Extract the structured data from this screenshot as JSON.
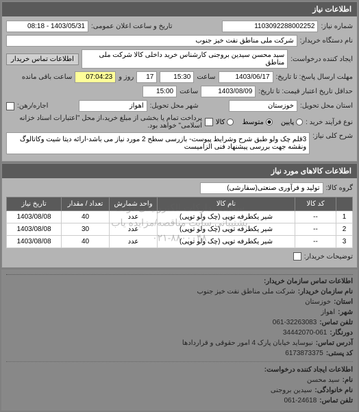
{
  "header": {
    "title": "اطلاعات نیاز"
  },
  "form": {
    "reqno_label": "شماره نیاز:",
    "reqno": "1103092288002252",
    "datetime_label": "تاریخ و ساعت اعلان عمومی:",
    "datetime": "1403/05/31 - 08:18",
    "org_label": "نام دستگاه خریدار:",
    "org": "شرکت ملی مناطق نفت خیز جنوب",
    "requester_label": "ایجاد کننده درخواست:",
    "requester": "سید محسن  سیدین بروجنی  کارشناس خرید داخلی کالا   شرکت ملی مناطق",
    "contact_btn": "اطلاعات تماس خریدار",
    "deadline_label": "مهلت ارسال پاسخ: تا تاریخ:",
    "deadline_date": "1403/06/17",
    "deadline_time_label": "ساعت",
    "deadline_time": "15:30",
    "days_remaining": "17",
    "days_label": "روز و",
    "time_remaining": "07:04:23",
    "time_remaining_label": "ساعت باقی مانده",
    "validity_label": "حداقل تاریخ اعتبار قیمت: تا تاریخ:",
    "validity_date": "1403/08/09",
    "validity_time_label": "ساعت",
    "validity_time": "15:00",
    "province_label": "استان محل تحویل:",
    "province": "خوزستان",
    "city_label": "شهر محل تحویل:",
    "city": "اهواز",
    "rental_label": "اجاره/رهن:",
    "purchase_type_label": "نوع فرآیند خرید :",
    "purchase_opt_low": "پایین",
    "purchase_opt_med": "متوسط",
    "purchase_opt_high": "کالا",
    "prepay_label": "پرداخت تمام یا بخشی از مبلغ خرید،از محل \"اعتبارات اسناد خزانه اسلامی\" خواهد بود.",
    "desc_label": "شرح کلی نیاز:",
    "desc": "3قلم چک ولو طبق شرح وشرایط پیوست- بازرسی سطح 2 مورد نیاز می باشد-ارائه دیتا شیت وکاتالوگ ونقشه جهت بررسی پیشنهاد فنی الزامیست"
  },
  "items_section": {
    "title": "اطلاعات کالاهای مورد نیاز",
    "group_label": "گروه کالا:",
    "group": "تولید و فرآوری صنعتی(سفارشی)"
  },
  "table": {
    "columns": [
      "",
      "کد کالا",
      "نام کالا",
      "واحد شمارش",
      "تعداد / مقدار",
      "تاریخ نیاز"
    ],
    "col_widths": [
      "24px",
      "60px",
      "auto",
      "70px",
      "70px",
      "80px"
    ],
    "rows": [
      [
        "1",
        "--",
        "شیر یکطرفه توپی (چک ولو توپی)",
        "عدد",
        "40",
        "1403/08/08"
      ],
      [
        "2",
        "--",
        "شیر یکطرفه توپی (چک ولو توپی)",
        "عدد",
        "30",
        "1403/08/08"
      ],
      [
        "3",
        "--",
        "شیر یکطرفه توپی (چک ولو توپی)",
        "عدد",
        "40",
        "1403/08/08"
      ]
    ]
  },
  "watermark": {
    "line1": "سامانه تدارکات الکترونیکی دولت",
    "line2": "پشتیبانی سایت مناقصه/مزایده یاب",
    "line3": "۰۲۱-۸۸۰۰۰۴۸"
  },
  "descriptions": {
    "label": "توضیحات خریدار:"
  },
  "buyer_section": {
    "title": "اطلاعات تماس سازمان خریدار:",
    "org_label": "نام سازمان خریدار:",
    "org": "شرکت ملی مناطق نفت خیز جنوب",
    "province_label": "استان:",
    "province": "خوزستان",
    "city_label": "شهر:",
    "city": "اهواز",
    "phone_label": "تلفن تماس:",
    "phone": "061-32263083",
    "fax_label": "دورنگار:",
    "fax": "34442070-061",
    "address_label": "آدرس تماس:",
    "address": "نیوساید خیابان پارک 4 امور حقوقی و قراردادها",
    "postal_label": "کد پستی:",
    "postal": "6173873375"
  },
  "requester_section": {
    "title": "اطلاعات ایجاد کننده درخواست:",
    "fname_label": "نام:",
    "fname": "سید محسن",
    "lname_label": "نام خانوادگی:",
    "lname": "سیدین بروجنی",
    "phone_label": "تلفن تماس:",
    "phone": "061-24618"
  },
  "colors": {
    "panel_bg": "#b4b4b4",
    "header_bg": "#5a5a5a",
    "header_fg": "#ffffff",
    "field_bg": "#ffffff",
    "highlight_bg": "#ffff99"
  }
}
